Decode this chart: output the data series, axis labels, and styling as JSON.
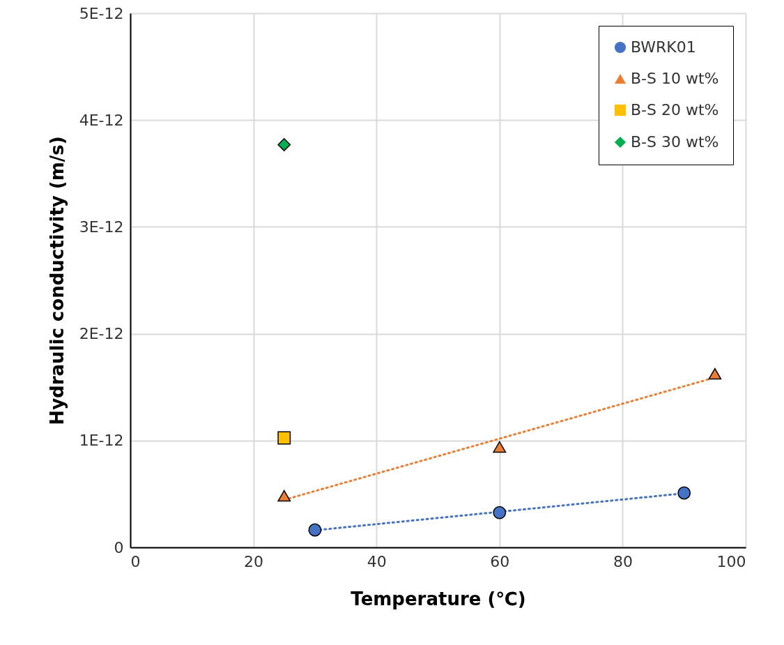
{
  "chart_data": {
    "type": "scatter",
    "xlabel": "Temperature (℃)",
    "ylabel": "Hydraulic conductivity (m/s)",
    "xlim": [
      0,
      100
    ],
    "xticks": [
      0,
      20,
      40,
      60,
      80,
      100
    ],
    "ylim": [
      0,
      5e-12
    ],
    "yticks": [
      0,
      {
        "value": 1e-12,
        "label": "1E-12"
      },
      {
        "value": 2e-12,
        "label": "2E-12"
      },
      {
        "value": 3e-12,
        "label": "3E-12"
      },
      {
        "value": 4e-12,
        "label": "4E-12"
      },
      {
        "value": 5e-12,
        "label": "5E-12"
      }
    ],
    "grid": true,
    "legend": "top right",
    "series": [
      {
        "type": "line",
        "color": "#4472c4",
        "x": [
          30,
          90
        ],
        "values": [
          1.6e-13,
          5.06e-13
        ],
        "line_style": "dotted",
        "marker": "none"
      },
      {
        "type": "line",
        "color": "#ed7d31",
        "x": [
          25,
          95
        ],
        "values": [
          4.45e-13,
          1.59e-12
        ],
        "line_style": "dotted",
        "marker": "none"
      },
      {
        "name": "BWRK01",
        "color": "#4472c4",
        "marker": "circle",
        "x": [
          30,
          60,
          90
        ],
        "values": [
          1.63e-13,
          3.26e-13,
          5.09e-13
        ]
      },
      {
        "name": "B-S 10 wt%",
        "color": "#ed7d31",
        "marker": "triangle",
        "x": [
          25,
          60,
          95
        ],
        "values": [
          4.83e-13,
          9.4e-13,
          1.625e-12
        ]
      },
      {
        "name": "B-S 20 wt%",
        "color": "#ffc000",
        "marker": "square",
        "x": [
          25
        ],
        "values": [
          1.025e-12
        ]
      },
      {
        "name": "B-S 30 wt%",
        "color": "#00b050",
        "marker": "diamond",
        "x": [
          25
        ],
        "values": [
          3.77e-12
        ]
      }
    ]
  }
}
